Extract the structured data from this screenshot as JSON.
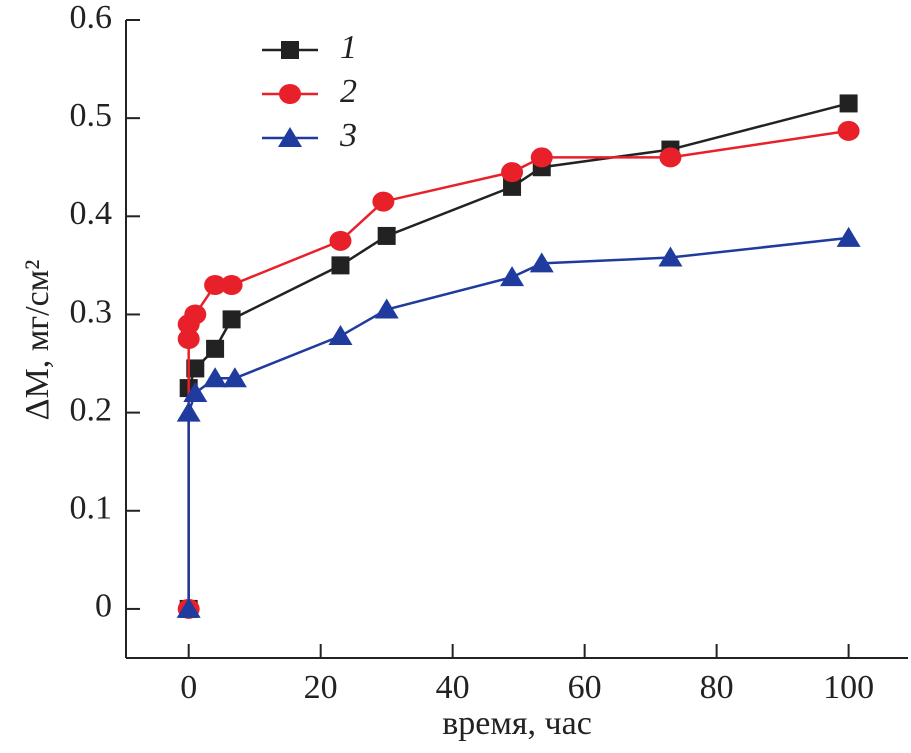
{
  "chart_data": {
    "type": "line",
    "x_label": "время, час",
    "y_label": "ΔM, мг/см²",
    "xlim": [
      -9.5,
      109
    ],
    "ylim": [
      -0.05,
      0.6
    ],
    "xticks": [
      0,
      20,
      40,
      60,
      80,
      100
    ],
    "yticks": [
      0,
      0.1,
      0.2,
      0.3,
      0.4,
      0.5,
      0.6
    ],
    "legend": "upper left",
    "series": [
      {
        "name": "1",
        "color": "#222222",
        "marker": "square",
        "x": [
          0,
          0,
          1,
          4,
          6.5,
          23,
          30,
          49,
          53.5,
          73,
          100
        ],
        "values": [
          0,
          0.225,
          0.245,
          0.265,
          0.295,
          0.35,
          0.38,
          0.43,
          0.45,
          0.468,
          0.515
        ]
      },
      {
        "name": "2",
        "color": "#e8202a",
        "marker": "circle",
        "x": [
          0,
          0,
          0,
          1,
          4,
          6.5,
          23,
          29.5,
          49,
          53.5,
          73,
          100
        ],
        "values": [
          0,
          0.275,
          0.29,
          0.3,
          0.33,
          0.33,
          0.375,
          0.415,
          0.445,
          0.46,
          0.46,
          0.487
        ]
      },
      {
        "name": "3",
        "color": "#1f3b9e",
        "marker": "triangle",
        "x": [
          0,
          0,
          1,
          4,
          7,
          23,
          30,
          49,
          53.5,
          73,
          100
        ],
        "values": [
          0,
          0.2,
          0.22,
          0.235,
          0.235,
          0.278,
          0.305,
          0.338,
          0.352,
          0.358,
          0.378
        ]
      }
    ]
  }
}
